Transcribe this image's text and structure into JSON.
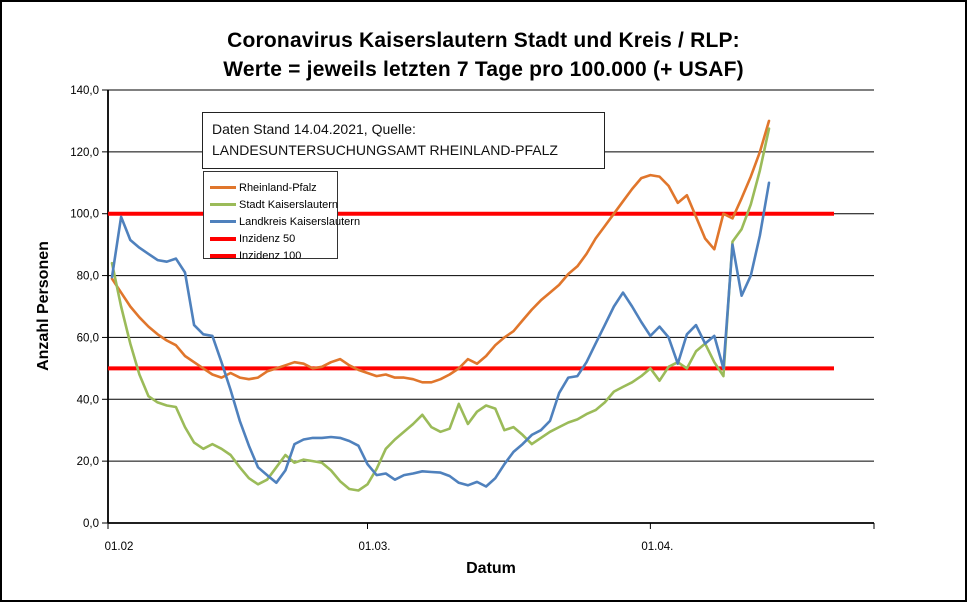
{
  "window": {
    "background": "#ffffff",
    "border_color": "#000000"
  },
  "title": {
    "line1": "Coronavirus Kaiserslautern Stadt und Kreis / RLP:",
    "line2": "Werte = jeweils letzten 7 Tage pro 100.000 (+ USAF)"
  },
  "annotation": {
    "text": "Daten Stand 14.04.2021, Quelle: LANDESUNTERSUCHUNGSAMT RHEINLAND-PFALZ"
  },
  "axes": {
    "y_title": "Anzahl Personen",
    "x_title": "Datum"
  },
  "chart_data": {
    "type": "line",
    "title": "Coronavirus Kaiserslautern Stadt und Kreis / RLP: Werte = jeweils letzten 7 Tage pro 100.000 (+ USAF)",
    "xlabel": "Datum",
    "ylabel": "Anzahl Personen",
    "ylim": [
      0,
      140
    ],
    "y_tick_step": 20,
    "y_tick_labels": [
      "0,0",
      "20,0",
      "40,0",
      "60,0",
      "80,0",
      "100,0",
      "120,0",
      "140,0"
    ],
    "x_tick_labels": [
      {
        "label": "01.02",
        "day": 0
      },
      {
        "label": "01.03.",
        "day": 28
      },
      {
        "label": "01.04.",
        "day": 59
      }
    ],
    "x_unit": "daily values from 01.02 to 14.04",
    "n_points": 73,
    "grid": true,
    "legend_position": "inside-top-left",
    "grid_color": "#000000",
    "series": [
      {
        "name": "Rheinland-Pfalz",
        "color": "#E0762C",
        "width": 2.6,
        "values": [
          79,
          74.5,
          70,
          66.5,
          63.5,
          61,
          59,
          57.5,
          54,
          52,
          50,
          48,
          47,
          48.5,
          47,
          46.5,
          47,
          49,
          50,
          51,
          52,
          51.5,
          50,
          50.5,
          52,
          53,
          51,
          49.5,
          48.5,
          47.5,
          48,
          47,
          47,
          46.5,
          45.5,
          45.5,
          46.5,
          48,
          50,
          53,
          51.5,
          54,
          57.5,
          60,
          62,
          65.5,
          69,
          72,
          74.5,
          77,
          80.5,
          83,
          87,
          92,
          96,
          100,
          104,
          108,
          111.5,
          112.5,
          112,
          109,
          103.5,
          106,
          99,
          92,
          88.5,
          100,
          98.5,
          105,
          112,
          120,
          130
        ]
      },
      {
        "name": "Stadt Kaiserslautern",
        "color": "#9BBB59",
        "width": 2.6,
        "values": [
          84,
          70,
          58,
          48,
          41,
          39,
          38,
          37.5,
          31,
          26,
          24,
          25.5,
          24,
          22,
          18,
          14.5,
          12.5,
          14,
          18,
          22,
          19.5,
          20.5,
          20,
          19.5,
          17,
          13.5,
          11,
          10.5,
          12.5,
          17.5,
          24,
          27,
          29.5,
          32,
          35,
          31,
          29.5,
          30.5,
          38.5,
          32,
          36,
          38,
          37,
          30,
          31,
          28.5,
          25.5,
          27.5,
          29.5,
          31,
          32.5,
          33.5,
          35.2,
          36.5,
          39,
          42.5,
          44,
          45.5,
          47.5,
          50,
          46,
          50.5,
          52,
          50,
          55.5,
          58,
          52,
          47.5,
          91,
          95,
          103,
          114,
          127.5
        ]
      },
      {
        "name": "Landkreis Kaiserslautern",
        "color": "#4F81BD",
        "width": 2.6,
        "values": [
          79.5,
          99,
          91.5,
          89,
          87,
          85,
          84.5,
          85.5,
          81,
          64,
          61,
          60.5,
          52,
          43,
          33,
          25,
          18,
          15.5,
          13,
          17,
          25.5,
          27,
          27.5,
          27.5,
          27.8,
          27.5,
          26.5,
          25,
          19,
          15.5,
          16,
          14,
          15.5,
          16,
          16.7,
          16.5,
          16.3,
          15.2,
          13,
          12.2,
          13.3,
          11.8,
          14.5,
          19,
          23,
          25.5,
          28.5,
          30,
          33,
          42,
          47,
          47.5,
          52,
          58,
          64,
          70,
          74.5,
          70,
          65,
          60.5,
          63.5,
          60,
          51.5,
          61,
          64,
          58,
          60.5,
          50,
          90,
          73.5,
          80,
          93,
          110
        ]
      },
      {
        "name": "Inzidenz 50",
        "color": "#FF0000",
        "width": 4,
        "constant": 50
      },
      {
        "name": "Inzidenz 100",
        "color": "#FF0000",
        "width": 4,
        "constant": 100
      }
    ]
  }
}
